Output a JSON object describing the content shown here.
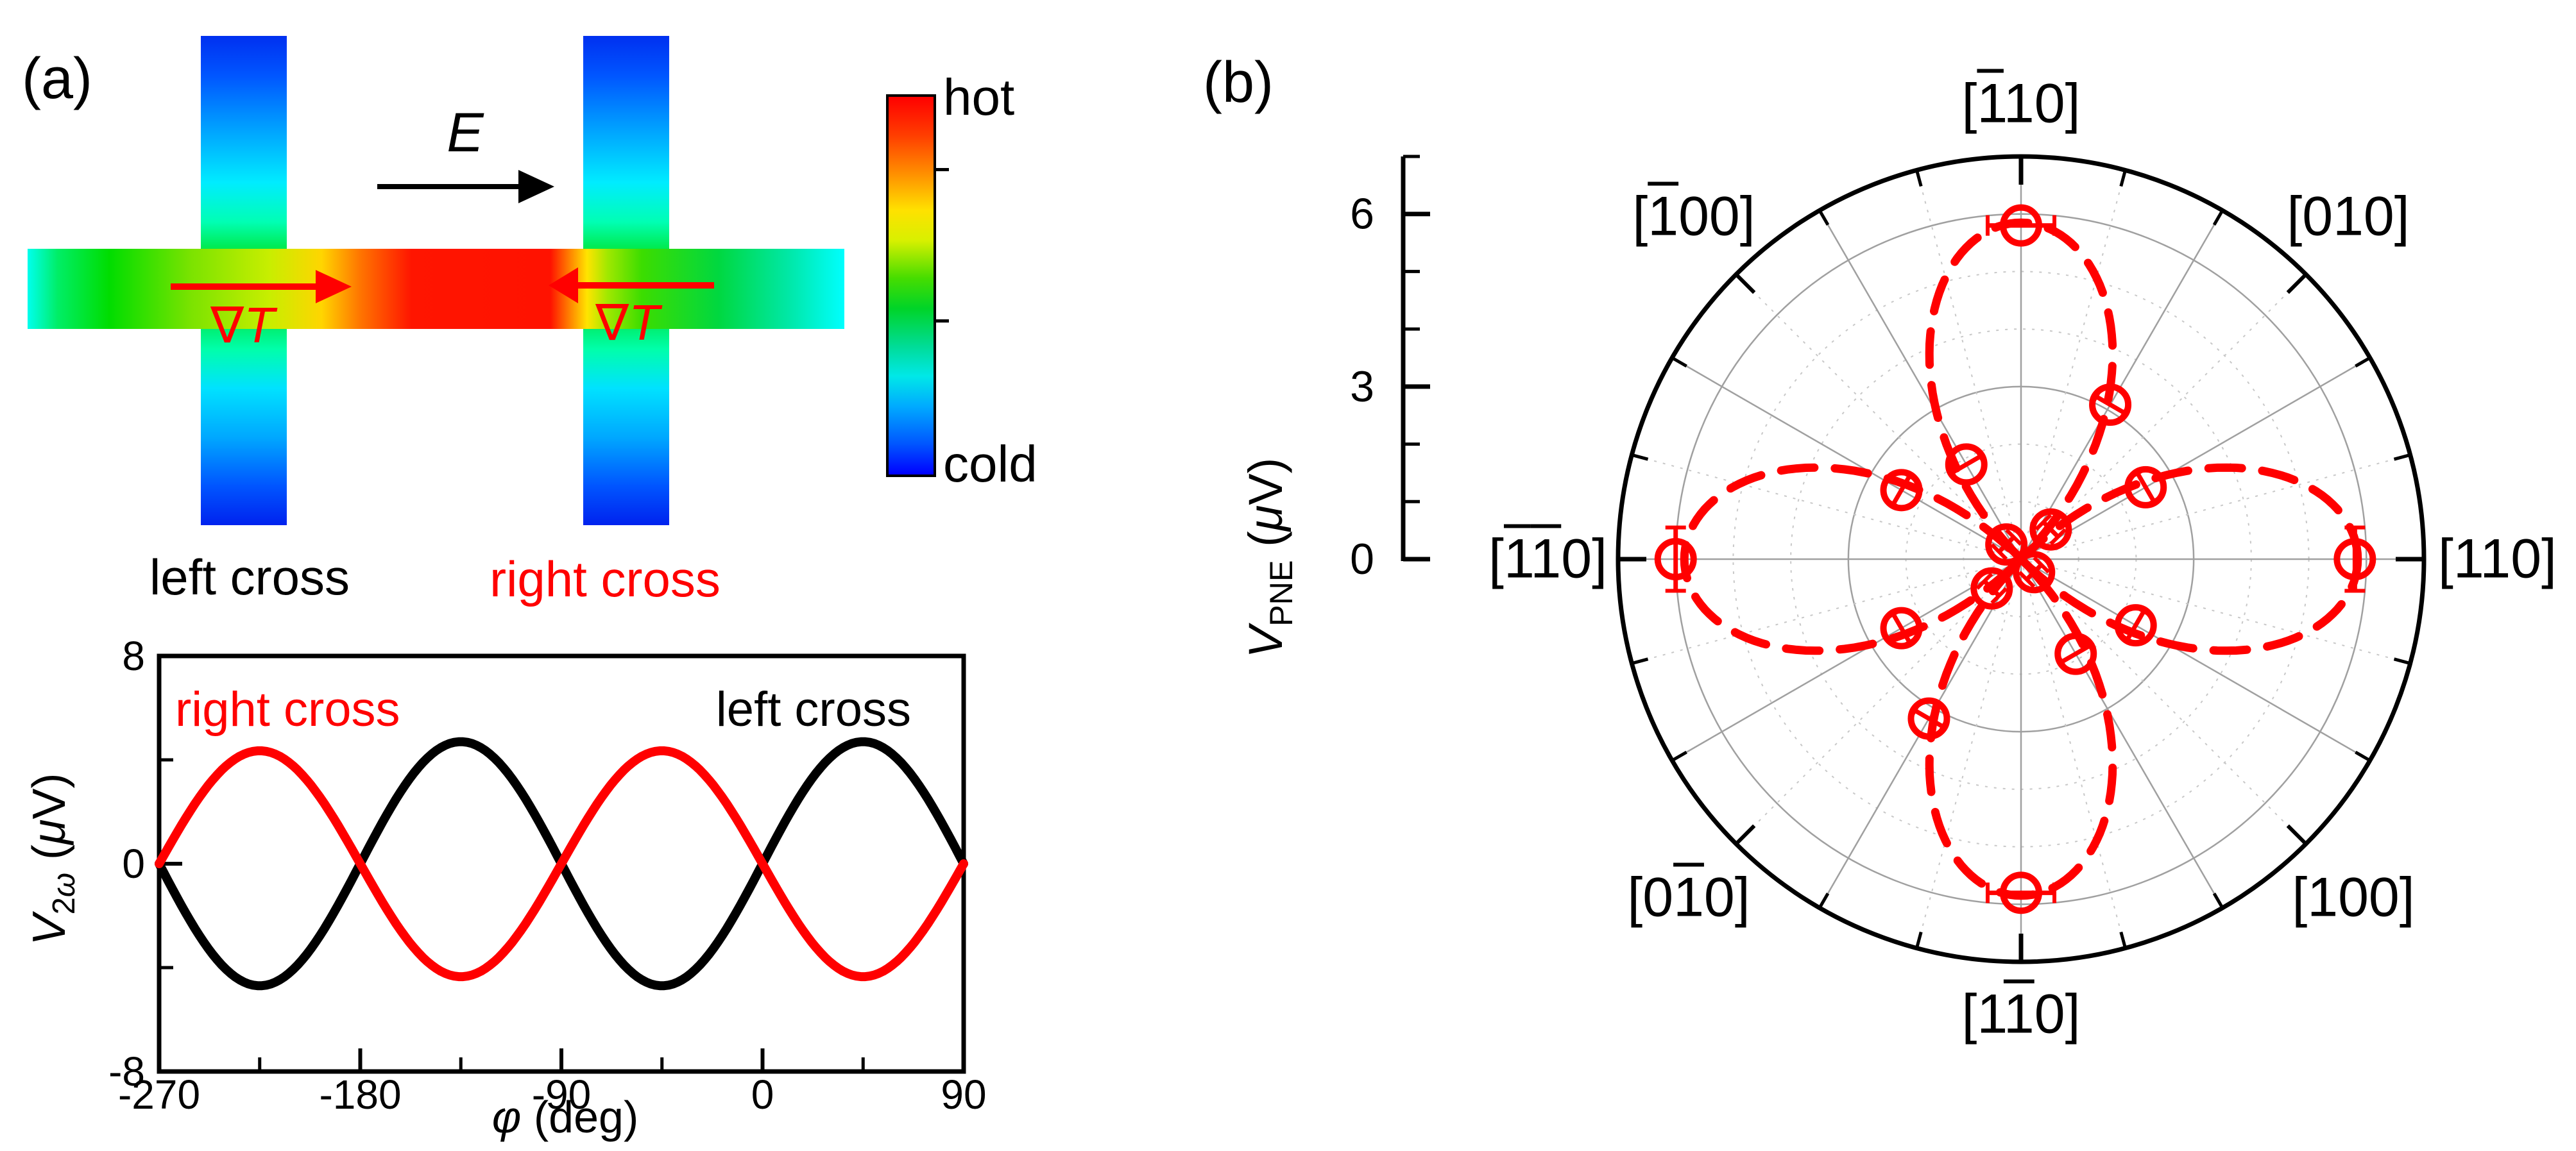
{
  "panel_a": {
    "label": "(a)",
    "schematic": {
      "e_field": {
        "label": "E",
        "arrow_direction": "right"
      },
      "grad_t": {
        "nabla": "∇",
        "t": "T",
        "left_arrow_direction": "right",
        "right_arrow_direction": "left"
      },
      "left_cross_label": "left cross",
      "right_cross_label": "right cross",
      "colorbar": {
        "top_label": "hot",
        "bottom_label": "cold",
        "colors_top_to_bottom": [
          "#ff0000",
          "#ff8c00",
          "#ffe100",
          "#46dd00",
          "#00dc96",
          "#00e8e8",
          "#00aaff",
          "#0000ff"
        ]
      }
    },
    "plot_ylabel_parts": {
      "v": "V",
      "sub_num": "2",
      "sub_omega": "ω",
      "unit_open": " (",
      "mu": "μ",
      "unit_close": "V)"
    },
    "plot_xlabel_parts": {
      "phi": "φ",
      "rest": " (deg)"
    }
  },
  "panel_b": {
    "label": "(b)",
    "ylabel_parts": {
      "v": "V",
      "sub": "PNE",
      "unit_open": " (",
      "mu": "μ",
      "unit_close": "V)"
    }
  },
  "chart_data": [
    {
      "id": "second-harmonic-angle-sweep",
      "type": "line",
      "xlabel": "φ (deg)",
      "ylabel": "V2ω (μV)",
      "xlim": [
        -270,
        90
      ],
      "ylim": [
        -8,
        8
      ],
      "x_major_ticks": [
        -270,
        -180,
        -90,
        0,
        90
      ],
      "x_minor_ticks": [
        -225,
        -135,
        -45,
        45
      ],
      "y_major_ticks": [
        8,
        0,
        -8
      ],
      "y_minor_ticks": [
        4,
        -4
      ],
      "grid": false,
      "legend_position": "top-inside",
      "series": [
        {
          "name": "left cross",
          "color": "#000000",
          "model": "V = A·sin(2φ)",
          "amplitude_uV": 4.7,
          "sign": 1,
          "period_deg": 180
        },
        {
          "name": "right cross",
          "color": "#ff0000",
          "model": "V = −A·sin(2φ)",
          "amplitude_uV": 4.35,
          "sign": -1,
          "period_deg": 180
        }
      ],
      "legend": [
        {
          "text": "right cross",
          "color": "#ff0000",
          "anchor": "left"
        },
        {
          "text": "left cross",
          "color": "#000000",
          "anchor": "right"
        }
      ]
    },
    {
      "id": "planar-nernst-polar",
      "type": "scatter-polar",
      "ylabel": "VPNE (μV)",
      "r_axis": {
        "max": 7,
        "major_ticks": [
          0,
          3,
          6
        ],
        "minor_ticks": [
          1,
          2,
          4,
          5,
          7
        ],
        "major_grid_r": [
          3,
          6
        ],
        "minor_grid_r": [
          1,
          2,
          4,
          5
        ]
      },
      "direction_labels": [
        {
          "angle_deg": 90,
          "text": "[1̅10]"
        },
        {
          "angle_deg": 45,
          "text": "[010]"
        },
        {
          "angle_deg": 0,
          "text": "[110]"
        },
        {
          "angle_deg": 315,
          "text": "[100]"
        },
        {
          "angle_deg": 270,
          "text": "[11̅0]"
        },
        {
          "angle_deg": 225,
          "text": "[01̅0]"
        },
        {
          "angle_deg": 180,
          "text": "[1̅1̅0]"
        },
        {
          "angle_deg": 135,
          "text": "[1̅00]"
        }
      ],
      "fit": {
        "model": "r = A·|cos(2θ)|",
        "A_uV": 5.85,
        "style": "dashed",
        "color": "#ff0000"
      },
      "points": [
        {
          "angle_deg": 0,
          "r_uV": 5.8,
          "err_uV": 0.55
        },
        {
          "angle_deg": 30,
          "r_uV": 2.5,
          "err_uV": 0.28
        },
        {
          "angle_deg": 45,
          "r_uV": 0.73,
          "err_uV": 0.18
        },
        {
          "angle_deg": 60,
          "r_uV": 3.1,
          "err_uV": 0.28
        },
        {
          "angle_deg": 90,
          "r_uV": 5.8,
          "err_uV": 0.58
        },
        {
          "angle_deg": 120,
          "r_uV": 1.9,
          "err_uV": 0.28
        },
        {
          "angle_deg": 135,
          "r_uV": 0.36,
          "err_uV": 0.18
        },
        {
          "angle_deg": 150,
          "r_uV": 2.4,
          "err_uV": 0.28
        },
        {
          "angle_deg": 180,
          "r_uV": 6.0,
          "err_uV": 0.55
        },
        {
          "angle_deg": 210,
          "r_uV": 2.4,
          "err_uV": 0.28
        },
        {
          "angle_deg": 225,
          "r_uV": 0.72,
          "err_uV": 0.18
        },
        {
          "angle_deg": 240,
          "r_uV": 3.2,
          "err_uV": 0.28
        },
        {
          "angle_deg": 270,
          "r_uV": 5.8,
          "err_uV": 0.58
        },
        {
          "angle_deg": 300,
          "r_uV": 1.9,
          "err_uV": 0.28
        },
        {
          "angle_deg": 315,
          "r_uV": 0.32,
          "err_uV": 0.18
        },
        {
          "angle_deg": 330,
          "r_uV": 2.3,
          "err_uV": 0.28
        }
      ]
    }
  ],
  "colors": {
    "accent_red": "#ff0000",
    "black": "#000000",
    "grid_major": "#a0a0a0",
    "grid_minor": "#c8c8c8"
  }
}
